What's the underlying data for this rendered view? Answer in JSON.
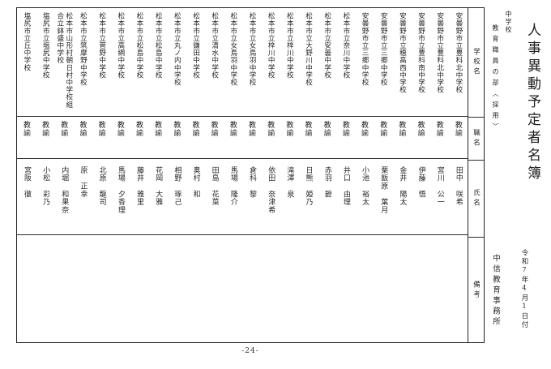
{
  "page": {
    "title": "人事異動予定者名簿",
    "school_level": "中学校",
    "section": "教育職員の部〈採用〉",
    "date": "令和7年4月1日付",
    "office": "中信教育事務所",
    "page_number": "-24-"
  },
  "table": {
    "headers": {
      "school": "学校名",
      "role": "職名",
      "name": "氏名",
      "remarks": "備考"
    },
    "entries": [
      {
        "school": "安曇野市立豊科北中学校",
        "role": "教諭",
        "name": "田中　咲希",
        "remarks": ""
      },
      {
        "school": "安曇野市立豊科北中学校",
        "role": "教諭",
        "name": "宮川　公一",
        "remarks": ""
      },
      {
        "school": "安曇野市立豊科南中学校",
        "role": "教諭",
        "name": "伊藤　悟",
        "remarks": ""
      },
      {
        "school": "安曇野市立穂高西中学校",
        "role": "教諭",
        "name": "金井　陽太",
        "remarks": ""
      },
      {
        "school": "安曇野市立三郷中学校",
        "role": "教諭",
        "name": "栗飯原　葉月",
        "remarks": ""
      },
      {
        "school": "安曇野市立三郷中学校",
        "role": "教諭",
        "name": "小池　裕太",
        "remarks": ""
      },
      {
        "school": "松本市立奈川中学校",
        "role": "教諭",
        "name": "井口　由理",
        "remarks": ""
      },
      {
        "school": "松本市立安曇中学校",
        "role": "教諭",
        "name": "赤羽　碧",
        "remarks": ""
      },
      {
        "school": "松本市立大野川中学校",
        "role": "教諭",
        "name": "日熊　姫乃",
        "remarks": ""
      },
      {
        "school": "松本市立梓川中学校",
        "role": "教諭",
        "name": "滝澤　泉",
        "remarks": ""
      },
      {
        "school": "松本市立梓川中学校",
        "role": "教諭",
        "name": "依田　奈津希",
        "remarks": ""
      },
      {
        "school": "松本市立女鳥羽中学校",
        "role": "教諭",
        "name": "倉科　黎",
        "remarks": ""
      },
      {
        "school": "松本市立女鳥羽中学校",
        "role": "教諭",
        "name": "馬場　隆介",
        "remarks": ""
      },
      {
        "school": "松本市立清水中学校",
        "role": "教諭",
        "name": "田島　花菜",
        "remarks": ""
      },
      {
        "school": "松本市立鎌田中学校",
        "role": "教諭",
        "name": "奥村　和",
        "remarks": ""
      },
      {
        "school": "松本市立丸ノ内中学校",
        "role": "教諭",
        "name": "相野　琢己",
        "remarks": ""
      },
      {
        "school": "松本市立松島中学校",
        "role": "教諭",
        "name": "花岡　大雅",
        "remarks": ""
      },
      {
        "school": "松本市立松島中学校",
        "role": "教諭",
        "name": "藤井　雅里",
        "remarks": ""
      },
      {
        "school": "松本市立高綱中学校",
        "role": "教諭",
        "name": "馬場　夕香理",
        "remarks": ""
      },
      {
        "school": "松本市立菅野中学校",
        "role": "教諭",
        "name": "北原　龍司",
        "remarks": ""
      },
      {
        "school": "松本市立筑摩野中学校",
        "role": "教諭",
        "name": "原　正幸",
        "remarks": ""
      },
      {
        "school": "松本市山形村朝日村中学校組合立鉢盛中学校",
        "role": "教諭",
        "name": "内堀　和果奈",
        "remarks": ""
      },
      {
        "school": "塩尻市立塩尻中学校",
        "role": "教諭",
        "name": "小松　彩乃",
        "remarks": ""
      },
      {
        "school": "塩尻市立丘中学校",
        "role": "教諭",
        "name": "宮阪　徹",
        "remarks": ""
      }
    ]
  }
}
